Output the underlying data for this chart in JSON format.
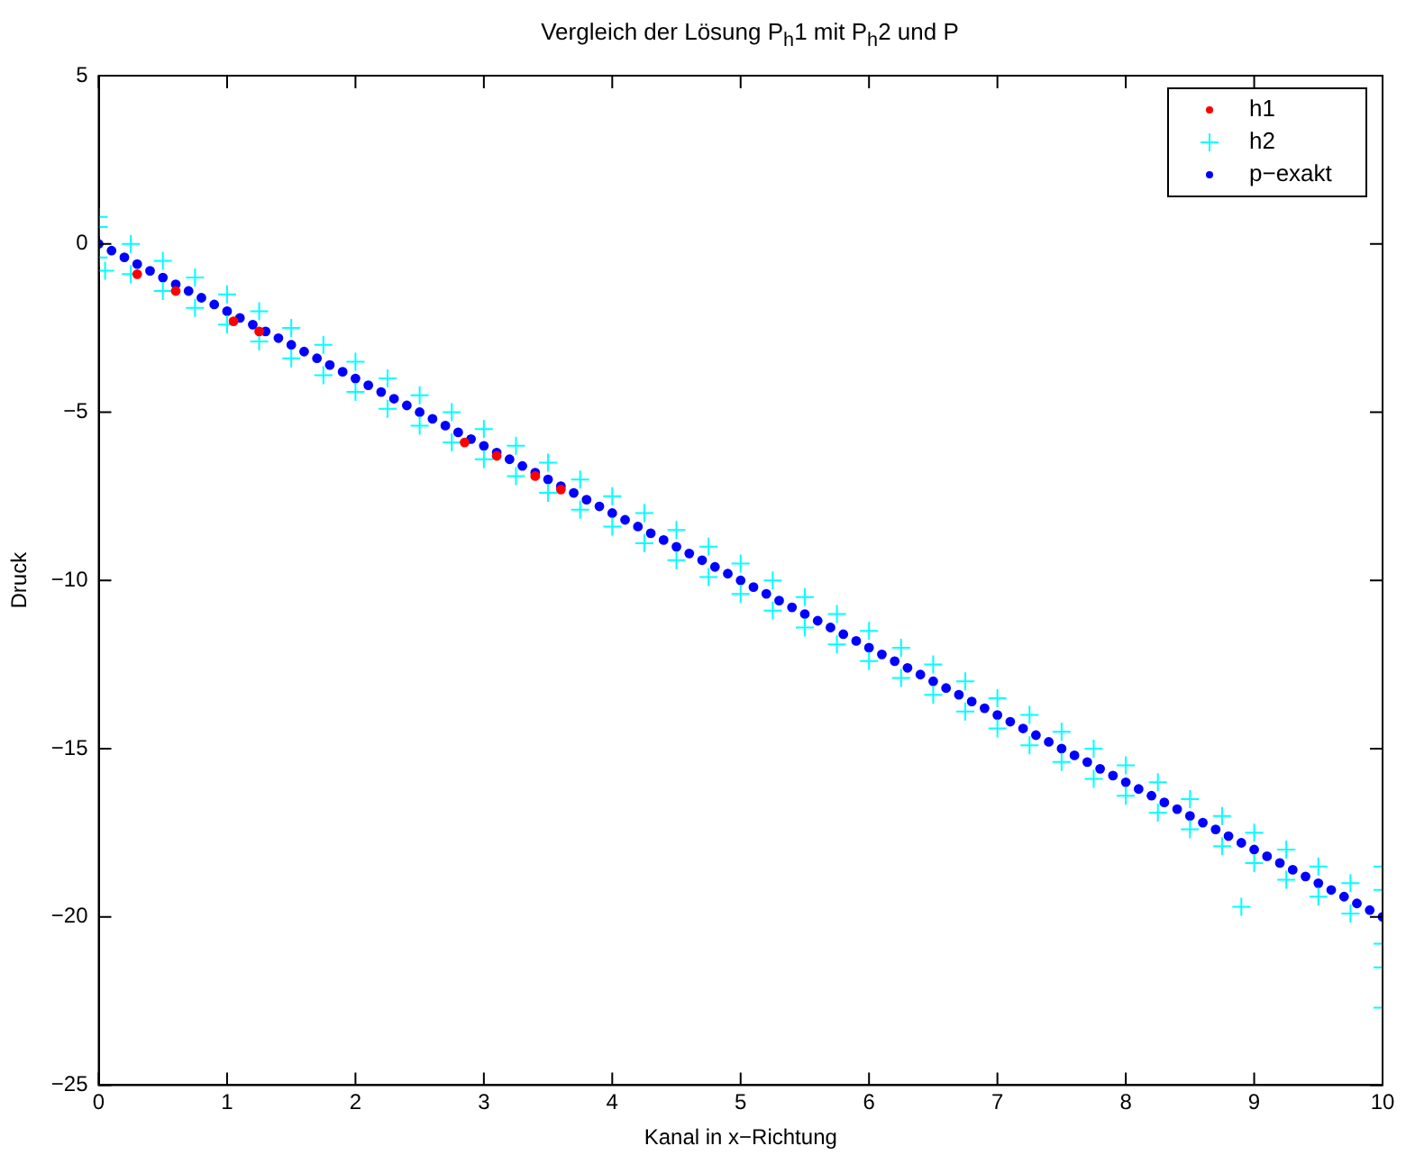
{
  "chart_data": {
    "type": "scatter",
    "title": "Vergleich der Lösung P$_{h}$1 mit P$_{h}$2 und P",
    "xlabel": "Kanal in x−Richtung",
    "ylabel": "Druck",
    "xlim": [
      0,
      10
    ],
    "xticks": [
      0,
      1,
      2,
      3,
      4,
      5,
      6,
      7,
      8,
      9,
      10
    ],
    "ylim": [
      -25,
      5
    ],
    "yticks": [
      -25,
      -20,
      -15,
      -10,
      -5,
      0,
      5
    ],
    "grid": false,
    "legend": "top right",
    "series": [
      {
        "name": "h1",
        "color": "#ff0000",
        "marker": "circle",
        "x": [
          0.3,
          0.6,
          1.05,
          1.25,
          2.85,
          3.1,
          3.4,
          3.6
        ],
        "values": [
          -0.9,
          -1.4,
          -2.3,
          -2.6,
          -5.9,
          -6.3,
          -6.9,
          -7.3
        ]
      },
      {
        "name": "h2",
        "color": "#00ffff",
        "marker": "cross",
        "x": [
          0,
          0.25,
          0.5,
          0.75,
          1,
          1.25,
          1.5,
          1.75,
          2,
          2.25,
          2.5,
          2.75,
          3,
          3.25,
          3.5,
          3.75,
          4,
          4.25,
          4.5,
          4.75,
          5,
          5.25,
          5.5,
          5.75,
          6,
          6.25,
          6.5,
          6.75,
          7,
          7.25,
          7.5,
          7.75,
          8,
          8.25,
          8.5,
          8.75,
          9,
          9.25,
          9.5,
          9.75,
          0,
          0.25,
          0.5,
          0.75,
          1,
          1.25,
          1.5,
          1.75,
          2,
          2.25,
          2.5,
          2.75,
          3,
          3.25,
          3.5,
          3.75,
          4,
          4.25,
          4.5,
          4.75,
          5,
          5.25,
          5.5,
          5.75,
          6,
          6.25,
          6.5,
          6.75,
          7,
          7.25,
          7.5,
          7.75,
          8,
          8.25,
          8.5,
          8.75,
          9,
          9.25,
          9.5,
          9.75,
          0,
          0.05,
          8.9,
          10,
          10,
          10,
          10,
          10
        ],
        "values": [
          0.5,
          0,
          -0.5,
          -1,
          -1.5,
          -2,
          -2.5,
          -3,
          -3.5,
          -4,
          -4.5,
          -5,
          -5.5,
          -6,
          -6.5,
          -7,
          -7.5,
          -8,
          -8.5,
          -9,
          -9.5,
          -10,
          -10.5,
          -11,
          -11.5,
          -12,
          -12.5,
          -13,
          -13.5,
          -14,
          -14.5,
          -15,
          -15.5,
          -16,
          -16.5,
          -17,
          -17.5,
          -18,
          -18.5,
          -19,
          -0.4,
          -0.9,
          -1.4,
          -1.9,
          -2.4,
          -2.9,
          -3.4,
          -3.9,
          -4.4,
          -4.9,
          -5.4,
          -5.9,
          -6.4,
          -6.9,
          -7.4,
          -7.9,
          -8.4,
          -8.9,
          -9.4,
          -9.9,
          -10.4,
          -10.9,
          -11.4,
          -11.9,
          -12.4,
          -12.9,
          -13.4,
          -13.9,
          -14.4,
          -14.9,
          -15.4,
          -15.9,
          -16.4,
          -16.9,
          -17.4,
          -17.9,
          -18.4,
          -18.9,
          -19.4,
          -19.9,
          0.8,
          -0.8,
          -19.7,
          -18.5,
          -19.2,
          -20.8,
          -21.5,
          -22.7
        ]
      },
      {
        "name": "p−exakt",
        "color": "#0000ff",
        "marker": "circle",
        "x": [
          0,
          0.1,
          0.2,
          0.3,
          0.4,
          0.5,
          0.6,
          0.7,
          0.8,
          0.9,
          1,
          1.1,
          1.2,
          1.3,
          1.4,
          1.5,
          1.6,
          1.7,
          1.8,
          1.9,
          2,
          2.1,
          2.2,
          2.3,
          2.4,
          2.5,
          2.6,
          2.7,
          2.8,
          2.9,
          3,
          3.1,
          3.2,
          3.3,
          3.4,
          3.5,
          3.6,
          3.7,
          3.8,
          3.9,
          4,
          4.1,
          4.2,
          4.3,
          4.4,
          4.5,
          4.6,
          4.7,
          4.8,
          4.9,
          5,
          5.1,
          5.2,
          5.3,
          5.4,
          5.5,
          5.6,
          5.7,
          5.8,
          5.9,
          6,
          6.1,
          6.2,
          6.3,
          6.4,
          6.5,
          6.6,
          6.7,
          6.8,
          6.9,
          7,
          7.1,
          7.2,
          7.3,
          7.4,
          7.5,
          7.6,
          7.7,
          7.8,
          7.9,
          8,
          8.1,
          8.2,
          8.3,
          8.4,
          8.5,
          8.6,
          8.7,
          8.8,
          8.9,
          9,
          9.1,
          9.2,
          9.3,
          9.4,
          9.5,
          9.6,
          9.7,
          9.8,
          9.9,
          10
        ],
        "values": [
          0,
          -0.2,
          -0.4,
          -0.6,
          -0.8,
          -1,
          -1.2,
          -1.4,
          -1.6,
          -1.8,
          -2,
          -2.2,
          -2.4,
          -2.6,
          -2.8,
          -3,
          -3.2,
          -3.4,
          -3.6,
          -3.8,
          -4,
          -4.2,
          -4.4,
          -4.6,
          -4.8,
          -5,
          -5.2,
          -5.4,
          -5.6,
          -5.8,
          -6,
          -6.2,
          -6.4,
          -6.6,
          -6.8,
          -7,
          -7.2,
          -7.4,
          -7.6,
          -7.8,
          -8,
          -8.2,
          -8.4,
          -8.6,
          -8.8,
          -9,
          -9.2,
          -9.4,
          -9.6,
          -9.8,
          -10,
          -10.2,
          -10.4,
          -10.6,
          -10.8,
          -11,
          -11.2,
          -11.4,
          -11.6,
          -11.8,
          -12,
          -12.2,
          -12.4,
          -12.6,
          -12.8,
          -13,
          -13.2,
          -13.4,
          -13.6,
          -13.8,
          -14,
          -14.2,
          -14.4,
          -14.6,
          -14.8,
          -15,
          -15.2,
          -15.4,
          -15.6,
          -15.8,
          -16,
          -16.2,
          -16.4,
          -16.6,
          -16.8,
          -17,
          -17.2,
          -17.4,
          -17.6,
          -17.8,
          -18,
          -18.2,
          -18.4,
          -18.6,
          -18.8,
          -19,
          -19.2,
          -19.4,
          -19.6,
          -19.8,
          -20
        ]
      }
    ]
  }
}
